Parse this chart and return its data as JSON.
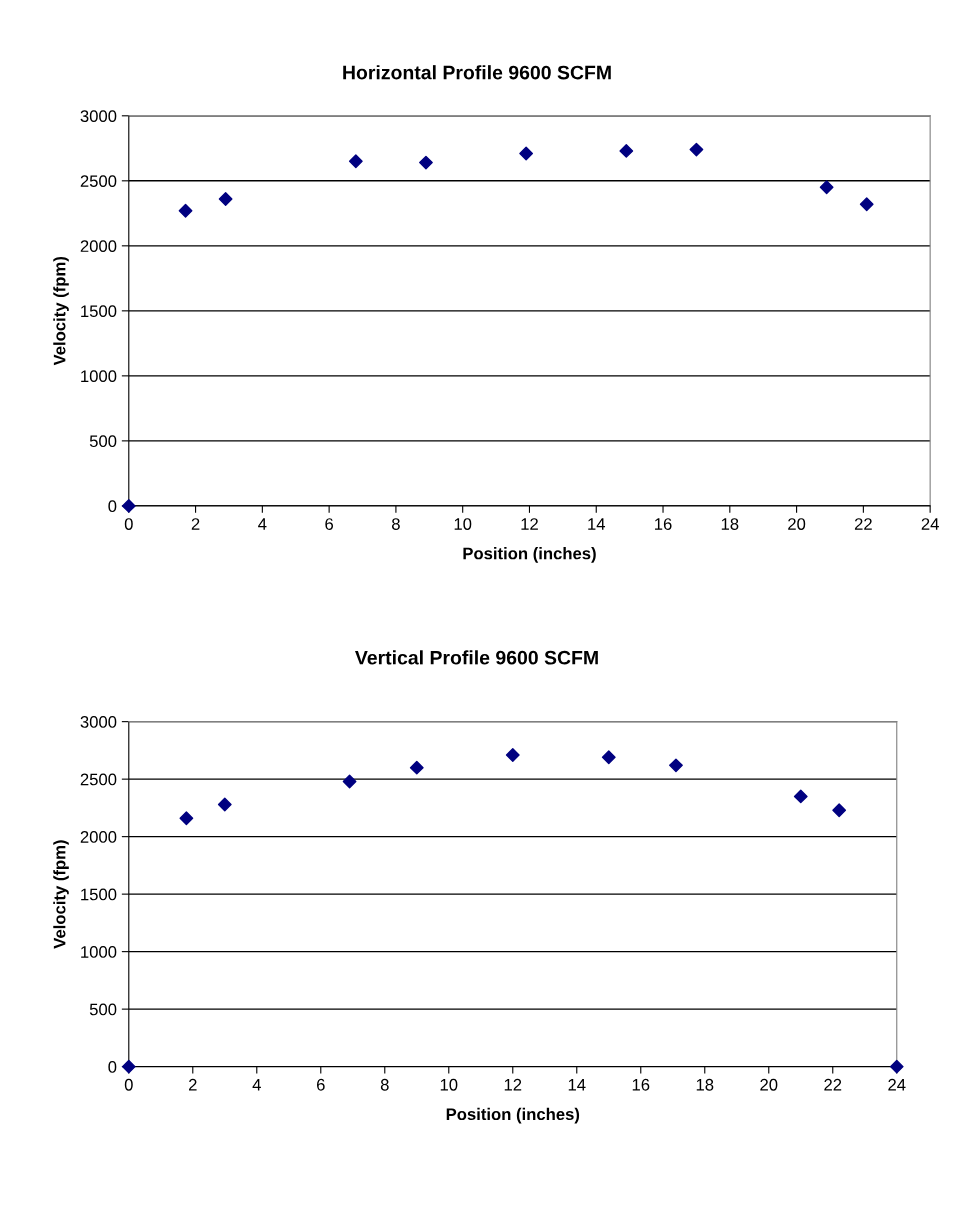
{
  "chart_data": [
    {
      "type": "scatter",
      "title": "Horizontal Profile 9600 SCFM",
      "xlabel": "Position (inches)",
      "ylabel": "Velocity (fpm)",
      "x": [
        0,
        1.7,
        2.9,
        6.8,
        8.9,
        11.9,
        14.9,
        17.0,
        20.9,
        22.1
      ],
      "values": [
        0,
        2270,
        2360,
        2650,
        2640,
        2710,
        2730,
        2740,
        2450,
        2320
      ],
      "color": "#000080",
      "marker": "diamond",
      "grid": "y",
      "xlim": [
        0,
        24
      ],
      "ylim": [
        0,
        3000
      ],
      "xticks": [
        0,
        2,
        4,
        6,
        8,
        10,
        12,
        14,
        16,
        18,
        20,
        22,
        24
      ],
      "yticks": [
        0,
        500,
        1000,
        1500,
        2000,
        2500,
        3000
      ]
    },
    {
      "type": "scatter",
      "title": "Vertical Profile 9600 SCFM",
      "xlabel": "Position (inches)",
      "ylabel": "Velocity (fpm)",
      "x": [
        0,
        1.8,
        3.0,
        6.9,
        9.0,
        12.0,
        15.0,
        17.1,
        21.0,
        22.2,
        24
      ],
      "values": [
        0,
        2160,
        2280,
        2480,
        2600,
        2710,
        2690,
        2620,
        2350,
        2230,
        0
      ],
      "color": "#000080",
      "marker": "diamond",
      "grid": "y",
      "xlim": [
        0,
        24
      ],
      "ylim": [
        0,
        3000
      ],
      "xticks": [
        0,
        2,
        4,
        6,
        8,
        10,
        12,
        14,
        16,
        18,
        20,
        22,
        24
      ],
      "yticks": [
        0,
        500,
        1000,
        1500,
        2000,
        2500,
        3000
      ]
    }
  ]
}
